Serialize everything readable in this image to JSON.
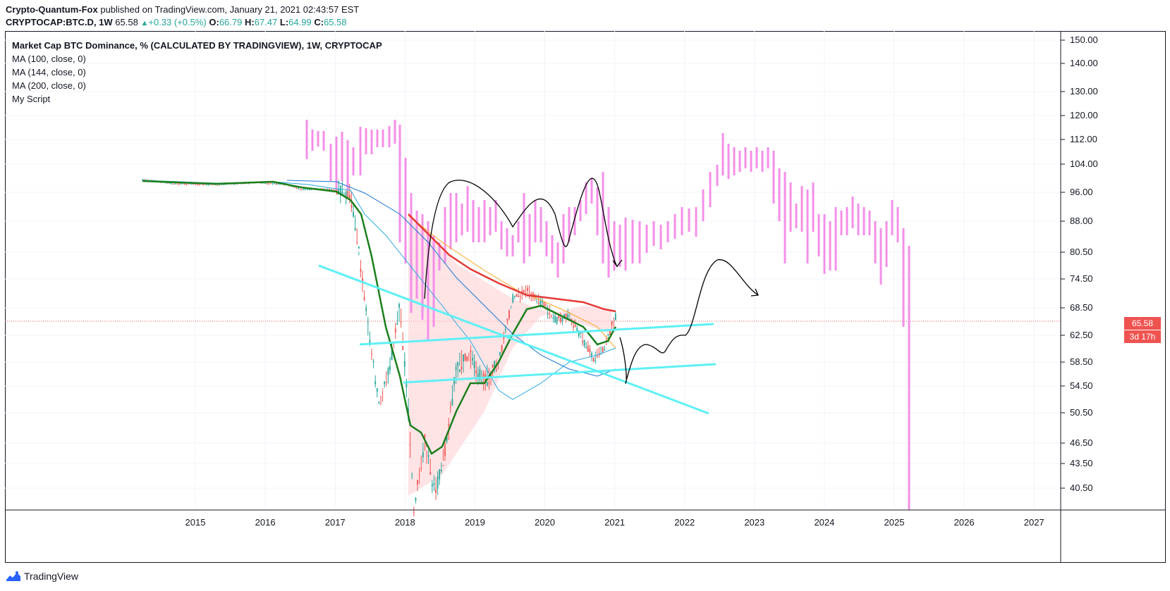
{
  "header": {
    "author": "Crypto-Quantum-Fox",
    "published_text": "published on TradingView.com, January 21, 2021 02:43:57 EST",
    "symbol": "CRYPTOCAP:BTC.D, 1W",
    "last": "65.58",
    "change": "+0.33 (+0.5%)",
    "open_label": "O:",
    "open": "66.79",
    "high_label": "H:",
    "high": "67.47",
    "low_label": "L:",
    "low": "64.99",
    "close_label": "C:",
    "close": "65.58"
  },
  "legend": [
    "Market Cap BTC Dominance, % (CALCULATED BY TRADINGVIEW), 1W, CRYPTOCAP",
    "MA (100, close, 0)",
    "MA (144, close, 0)",
    "MA (200, close, 0)",
    "My Script"
  ],
  "price_tag": {
    "value": "65.58",
    "countdown": "3d 17h"
  },
  "footer": {
    "brand": "TradingView"
  },
  "colors": {
    "up": "#26a69a",
    "down": "#ef5350",
    "ghost": "#f48fe8",
    "trend": "#5ef0f5",
    "ma100": "#1976d2",
    "ma144": "#f9a825",
    "ma200": "#e53935",
    "ma_fast": "#1b7f1b",
    "ma_slow": "#29a9e1",
    "fill": "#ffcdd2"
  },
  "chart_data": {
    "type": "candlestick",
    "x_ticks": [
      "2015",
      "2016",
      "2017",
      "2018",
      "2019",
      "2020",
      "2021",
      "2022",
      "2023",
      "2024",
      "2025",
      "2026",
      "2027"
    ],
    "y_ticks": [
      "40.50",
      "43.50",
      "46.50",
      "50.50",
      "54.50",
      "58.50",
      "62.50",
      "68.50",
      "74.50",
      "80.50",
      "88.00",
      "96.00",
      "104.00",
      "112.00",
      "120.00",
      "130.00",
      "140.00",
      "150.00"
    ],
    "last_price": 65.58,
    "series": [
      {
        "name": "MA (100, close, 0)"
      },
      {
        "name": "MA (144, close, 0)"
      },
      {
        "name": "MA (200, close, 0)"
      },
      {
        "name": "My Script"
      }
    ]
  }
}
